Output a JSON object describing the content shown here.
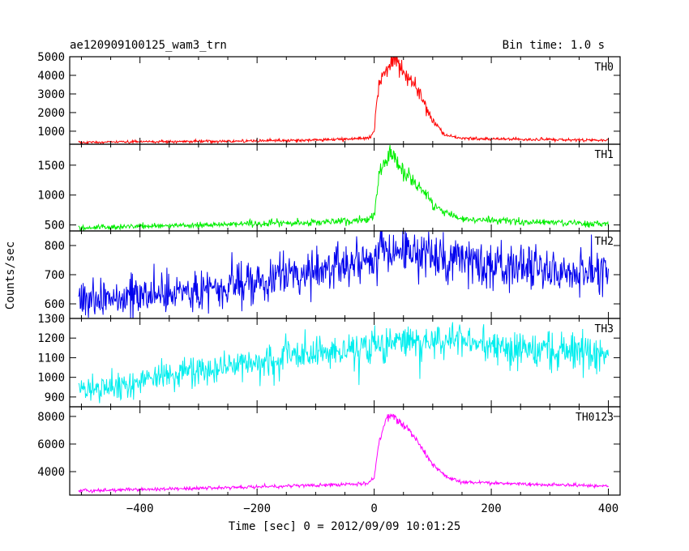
{
  "header": {
    "title": "ae120909100125_wam3_trn",
    "bin_time": "Bin time: 1.0 s"
  },
  "axes": {
    "xlabel": "Time [sec] 0 = 2012/09/09 10:01:25",
    "ylabel": "Counts/sec"
  },
  "chart_data": {
    "type": "line",
    "title": "ae120909100125_wam3_trn",
    "subtitle": "Bin time: 1.0 s",
    "xlabel": "Time [sec] 0 = 2012/09/09 10:01:25",
    "ylabel": "Counts/sec",
    "xlim": [
      -520,
      420
    ],
    "x_ticks": [
      -400,
      -200,
      0,
      200,
      400
    ],
    "x_step": 1,
    "x_range": [
      -505,
      400
    ],
    "grid": false,
    "legend": "none",
    "panels": [
      {
        "name": "TH0",
        "color": "#ff0000",
        "ylim": [
          300,
          5000
        ],
        "yticks": [
          1000,
          2000,
          3000,
          4000,
          5000
        ],
        "keyframes": [
          [
            -505,
            400
          ],
          [
            -300,
            450
          ],
          [
            -100,
            520
          ],
          [
            -10,
            620
          ],
          [
            0,
            1000
          ],
          [
            5,
            2800
          ],
          [
            15,
            4000
          ],
          [
            28,
            4750
          ],
          [
            40,
            4600
          ],
          [
            55,
            4000
          ],
          [
            70,
            3500
          ],
          [
            85,
            2500
          ],
          [
            100,
            1500
          ],
          [
            120,
            800
          ],
          [
            150,
            620
          ],
          [
            250,
            560
          ],
          [
            400,
            520
          ]
        ],
        "noise": [
          0.06,
          40
        ]
      },
      {
        "name": "TH1",
        "color": "#00ee00",
        "ylim": [
          400,
          1850
        ],
        "yticks": [
          500,
          1000,
          1500
        ],
        "keyframes": [
          [
            -505,
            450
          ],
          [
            -300,
            500
          ],
          [
            -100,
            540
          ],
          [
            -10,
            580
          ],
          [
            0,
            700
          ],
          [
            10,
            1400
          ],
          [
            28,
            1680
          ],
          [
            45,
            1450
          ],
          [
            65,
            1250
          ],
          [
            85,
            1050
          ],
          [
            100,
            850
          ],
          [
            120,
            700
          ],
          [
            150,
            600
          ],
          [
            250,
            560
          ],
          [
            400,
            520
          ]
        ],
        "noise": [
          0.05,
          25
        ]
      },
      {
        "name": "TH2",
        "color": "#0000ee",
        "ylim": [
          550,
          850
        ],
        "yticks": [
          600,
          700,
          800
        ],
        "keyframes": [
          [
            -505,
            615
          ],
          [
            -400,
            635
          ],
          [
            -300,
            650
          ],
          [
            -200,
            675
          ],
          [
            -100,
            710
          ],
          [
            0,
            760
          ],
          [
            30,
            785
          ],
          [
            100,
            760
          ],
          [
            200,
            740
          ],
          [
            300,
            715
          ],
          [
            400,
            705
          ]
        ],
        "noise": [
          0.055,
          0
        ]
      },
      {
        "name": "TH3",
        "color": "#00eeee",
        "ylim": [
          850,
          1300
        ],
        "yticks": [
          900,
          1000,
          1100,
          1200,
          1300
        ],
        "keyframes": [
          [
            -505,
            930
          ],
          [
            -400,
            980
          ],
          [
            -300,
            1030
          ],
          [
            -200,
            1080
          ],
          [
            -100,
            1120
          ],
          [
            0,
            1160
          ],
          [
            50,
            1180
          ],
          [
            150,
            1185
          ],
          [
            250,
            1160
          ],
          [
            400,
            1120
          ]
        ],
        "noise": [
          0.04,
          0
        ]
      },
      {
        "name": "TH0123",
        "color": "#ff00ff",
        "ylim": [
          2300,
          8700
        ],
        "yticks": [
          4000,
          6000,
          8000
        ],
        "keyframes": [
          [
            -505,
            2600
          ],
          [
            -300,
            2800
          ],
          [
            -100,
            3000
          ],
          [
            -10,
            3150
          ],
          [
            0,
            3600
          ],
          [
            8,
            6000
          ],
          [
            20,
            7800
          ],
          [
            30,
            8100
          ],
          [
            45,
            7600
          ],
          [
            60,
            7000
          ],
          [
            80,
            5800
          ],
          [
            100,
            4500
          ],
          [
            125,
            3600
          ],
          [
            150,
            3250
          ],
          [
            250,
            3100
          ],
          [
            400,
            2950
          ]
        ],
        "noise": [
          0.02,
          60
        ]
      }
    ]
  }
}
